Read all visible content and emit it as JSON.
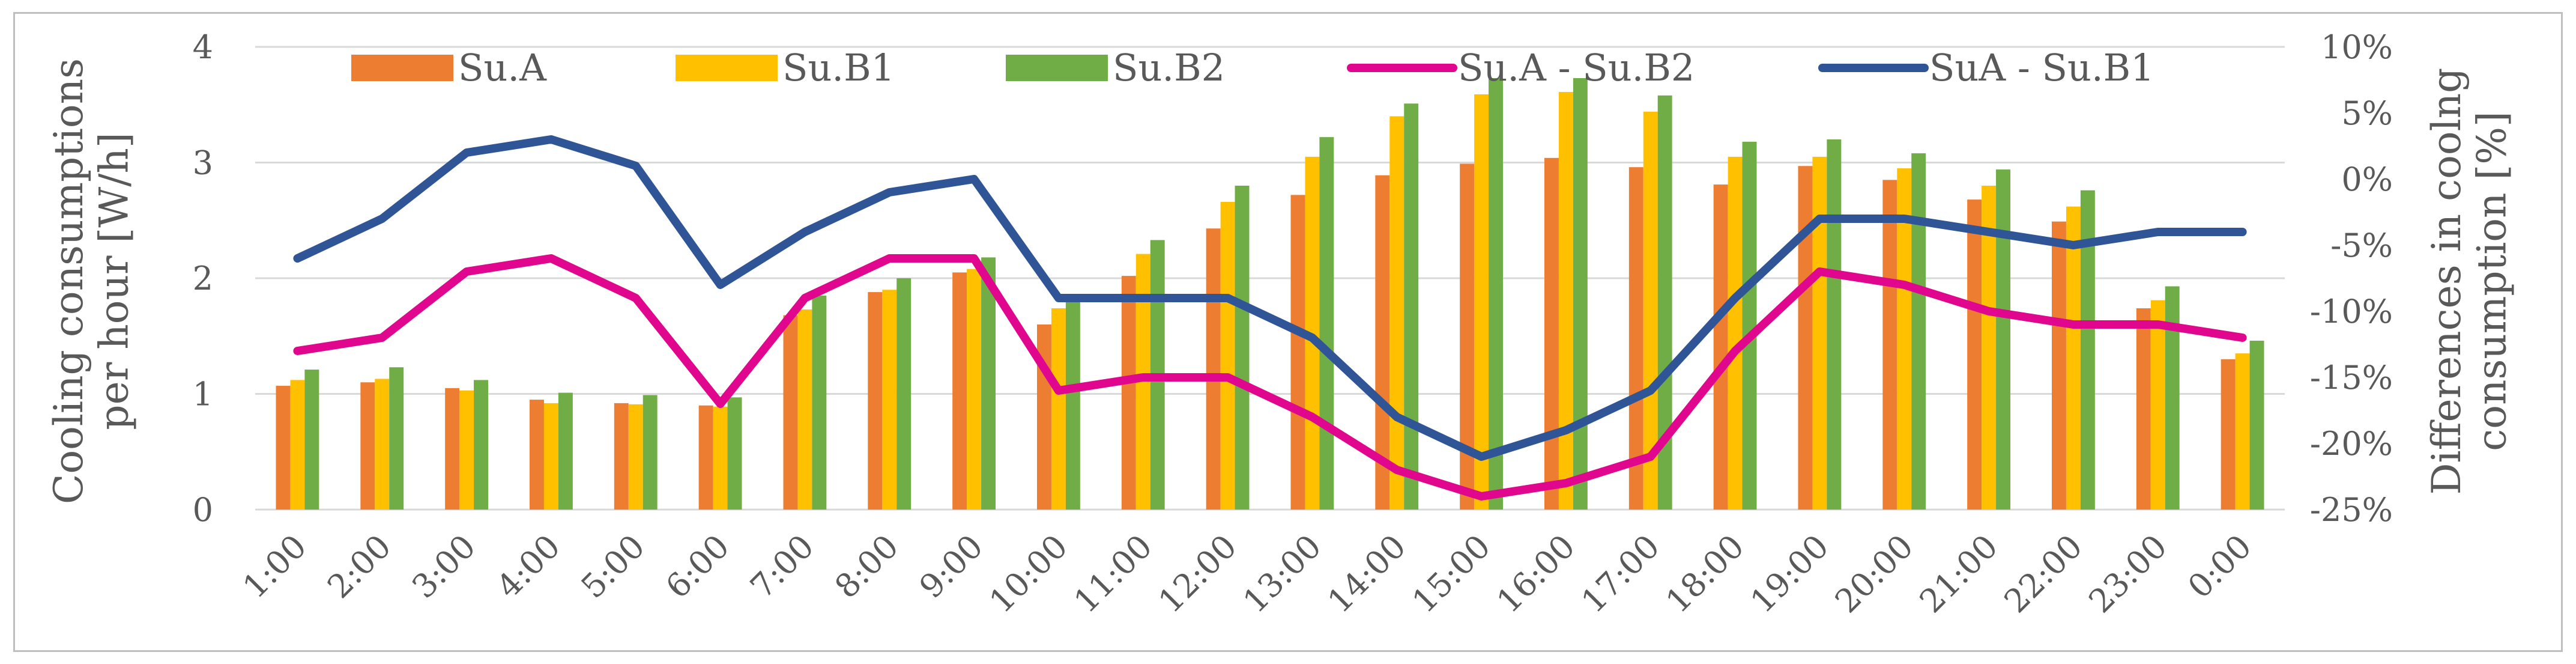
{
  "chart_data": {
    "type": "bar",
    "categories": [
      "1:00",
      "2:00",
      "3:00",
      "4:00",
      "5:00",
      "6:00",
      "7:00",
      "8:00",
      "9:00",
      "10:00",
      "11:00",
      "12:00",
      "13:00",
      "14:00",
      "15:00",
      "16:00",
      "17:00",
      "18:00",
      "19:00",
      "20:00",
      "21:00",
      "22:00",
      "23:00",
      "0:00"
    ],
    "series": [
      {
        "name": "Su.A",
        "type": "bar",
        "axis": "left",
        "color": "#ed7d31",
        "values": [
          1.07,
          1.1,
          1.05,
          0.95,
          0.92,
          0.9,
          1.68,
          1.88,
          2.05,
          1.6,
          2.02,
          2.43,
          2.72,
          2.89,
          2.99,
          3.04,
          2.96,
          2.81,
          2.97,
          2.85,
          2.68,
          2.49,
          1.74,
          1.3
        ]
      },
      {
        "name": "Su.B1",
        "type": "bar",
        "axis": "left",
        "color": "#ffc000",
        "values": [
          1.12,
          1.13,
          1.03,
          0.92,
          0.91,
          0.89,
          1.73,
          1.9,
          2.08,
          1.74,
          2.21,
          2.66,
          3.05,
          3.4,
          3.59,
          3.61,
          3.44,
          3.05,
          3.05,
          2.95,
          2.8,
          2.62,
          1.81,
          1.35
        ]
      },
      {
        "name": "Su.B2",
        "type": "bar",
        "axis": "left",
        "color": "#70ad47",
        "values": [
          1.21,
          1.23,
          1.12,
          1.01,
          0.99,
          0.97,
          1.85,
          2.0,
          2.18,
          1.81,
          2.33,
          2.8,
          3.22,
          3.51,
          3.73,
          3.73,
          3.58,
          3.18,
          3.2,
          3.08,
          2.94,
          2.76,
          1.93,
          1.46
        ]
      },
      {
        "name": "Su.A - Su.B2",
        "type": "line",
        "axis": "right",
        "color": "#e0068e",
        "values": [
          -13,
          -12,
          -7,
          -6,
          -9,
          -17,
          -9,
          -6,
          -6,
          -16,
          -15,
          -15,
          -18,
          -22,
          -24,
          -23,
          -21,
          -13,
          -7,
          -8,
          -10,
          -11,
          -11,
          -12
        ]
      },
      {
        "name": "SuA - Su.B1",
        "type": "line",
        "axis": "right",
        "color": "#2f5597",
        "values": [
          -6,
          -3,
          2,
          3,
          1,
          -8,
          -4,
          -1,
          0,
          -9,
          -9,
          -9,
          -12,
          -18,
          -21,
          -19,
          -16,
          -9,
          -3,
          -3,
          -4,
          -5,
          -4,
          -4
        ]
      }
    ],
    "ylabel": "Cooling consumptions per hour [W/h]",
    "ylabel_lines": [
      "Cooling consumptions",
      "per hour [W/h]"
    ],
    "y2label": "Differences in coolng consumption [%]",
    "y2label_lines": [
      "Differences in coolng",
      "consumption [%]"
    ],
    "xlabel": "",
    "title": "",
    "ylim": [
      0,
      4
    ],
    "yticks": [
      0,
      1,
      2,
      3,
      4
    ],
    "y2lim": [
      -25,
      10
    ],
    "y2ticks": [
      -25,
      -20,
      -15,
      -10,
      -5,
      0,
      5,
      10
    ],
    "y2tick_labels": [
      "-25%",
      "-20%",
      "-15%",
      "-10%",
      "-5%",
      "0%",
      "5%",
      "10%"
    ],
    "grid": true,
    "legend": "top"
  }
}
